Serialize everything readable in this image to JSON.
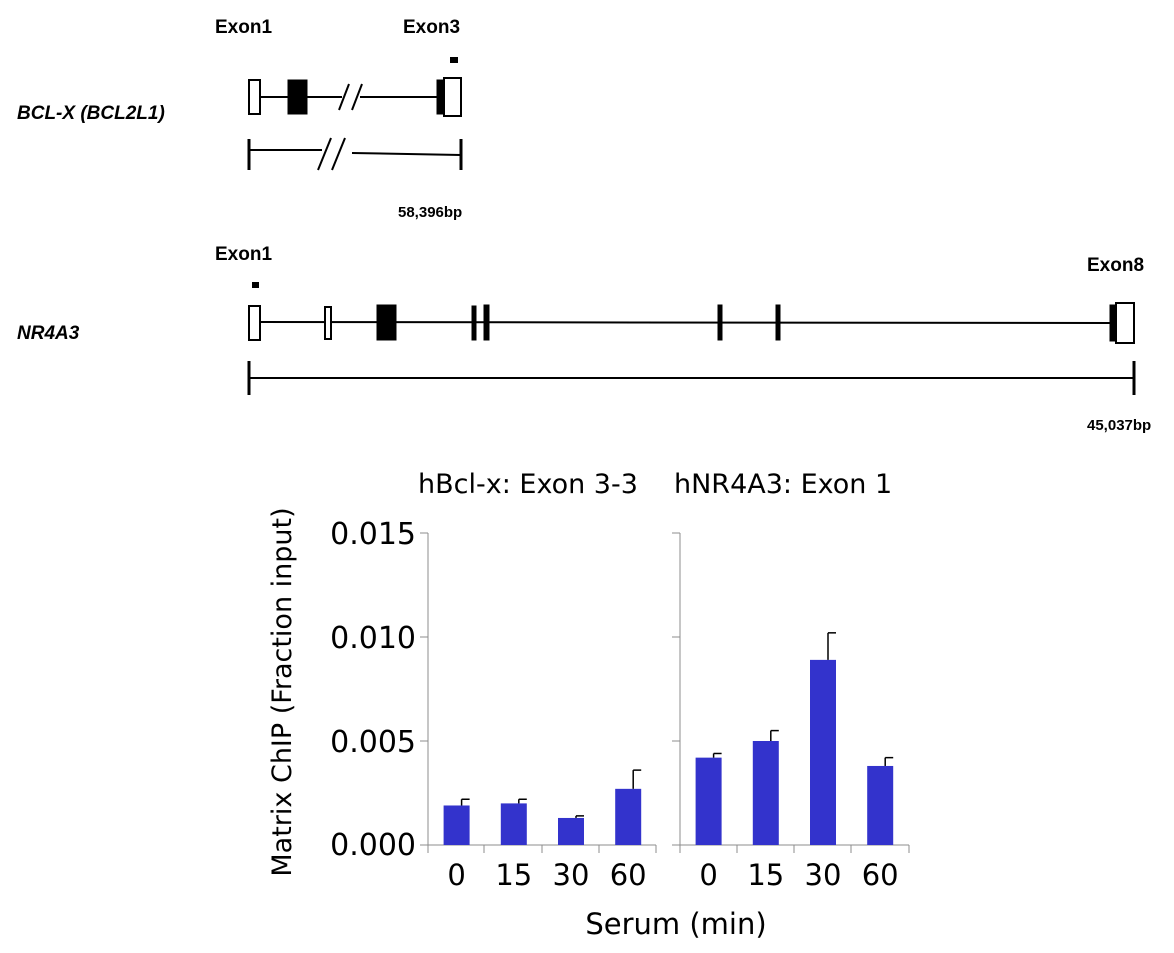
{
  "gene_diagram": {
    "bclx": {
      "gene_label": "BCL-X (BCL2L1)",
      "exon_start_label": "Exon1",
      "exon_end_label": "Exon3",
      "length_label": "58,396bp"
    },
    "nr4a3": {
      "gene_label": "NR4A3",
      "exon_start_label": "Exon1",
      "exon_end_label": "Exon8",
      "length_label": "45,037bp"
    }
  },
  "chart_data": {
    "type": "bar",
    "ylabel": "Matrix ChIP (Fraction input)",
    "xlabel": "Serum (min)",
    "ylim": [
      0,
      0.015
    ],
    "yticks": [
      "0.000",
      "0.005",
      "0.010",
      "0.015"
    ],
    "ytick_values": [
      0,
      0.005,
      0.01,
      0.015
    ],
    "bar_color": "#3333cc",
    "panels": [
      {
        "title": "hBcl-x: Exon 3-3",
        "categories": [
          "0",
          "15",
          "30",
          "60"
        ],
        "values": [
          0.0019,
          0.002,
          0.0013,
          0.0027
        ],
        "errors": [
          0.0003,
          0.0002,
          0.0001,
          0.0009
        ]
      },
      {
        "title": "hNR4A3: Exon 1",
        "categories": [
          "0",
          "15",
          "30",
          "60"
        ],
        "values": [
          0.0042,
          0.005,
          0.0089,
          0.0038
        ],
        "errors": [
          0.0002,
          0.0005,
          0.0013,
          0.0004
        ]
      }
    ]
  }
}
